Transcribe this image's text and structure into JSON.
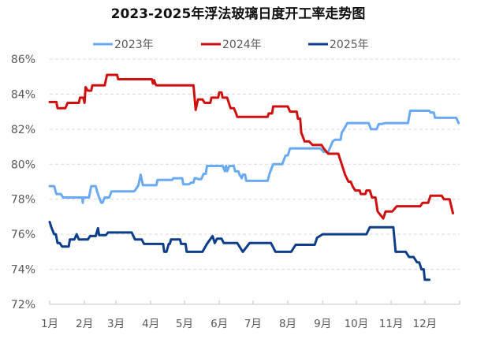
{
  "chart_data": {
    "type": "line",
    "title": "2023-2025年浮法玻璃日度开工率走势图",
    "xlabel": "",
    "ylabel": "",
    "ylim": [
      72,
      86
    ],
    "yticks": [
      "72%",
      "74%",
      "76%",
      "78%",
      "80%",
      "82%",
      "84%",
      "86%"
    ],
    "xticks": [
      "1月",
      "2月",
      "3月",
      "4月",
      "5月",
      "6月",
      "7月",
      "8月",
      "9月",
      "10月",
      "11月",
      "12月"
    ],
    "x_unit": "day_of_year",
    "grid": true,
    "legend_position": "top",
    "series": [
      {
        "name": "2023年",
        "color": "#6aaaf5",
        "points": [
          [
            0,
            78.75
          ],
          [
            4,
            78.75
          ],
          [
            6,
            78.3
          ],
          [
            10,
            78.3
          ],
          [
            12,
            78.1
          ],
          [
            29,
            78.1
          ],
          [
            29.5,
            77.8
          ],
          [
            30,
            78.1
          ],
          [
            35,
            78.1
          ],
          [
            37,
            78.75
          ],
          [
            41,
            78.75
          ],
          [
            42.5,
            78.4
          ],
          [
            44,
            78.1
          ],
          [
            46,
            77.8
          ],
          [
            47,
            77.8
          ],
          [
            49,
            78.1
          ],
          [
            53,
            78.1
          ],
          [
            55,
            78.45
          ],
          [
            75,
            78.45
          ],
          [
            76,
            78.5
          ],
          [
            79,
            78.8
          ],
          [
            81,
            79.4
          ],
          [
            83,
            78.8
          ],
          [
            95,
            78.8
          ],
          [
            96,
            79.1
          ],
          [
            109,
            79.1
          ],
          [
            110,
            79.2
          ],
          [
            118,
            79.2
          ],
          [
            119,
            78.85
          ],
          [
            124,
            78.85
          ],
          [
            126,
            78.95
          ],
          [
            128,
            78.95
          ],
          [
            129,
            79.2
          ],
          [
            131,
            79.2
          ],
          [
            132,
            79.15
          ],
          [
            135,
            79.15
          ],
          [
            137,
            79.45
          ],
          [
            139,
            79.45
          ],
          [
            140,
            79.9
          ],
          [
            154,
            79.9
          ],
          [
            156,
            79.6
          ],
          [
            157,
            79.9
          ],
          [
            158,
            79.6
          ],
          [
            160,
            79.9
          ],
          [
            164,
            79.9
          ],
          [
            165,
            79.6
          ],
          [
            168,
            79.6
          ],
          [
            169,
            79.4
          ],
          [
            171,
            79.2
          ],
          [
            172,
            79.4
          ],
          [
            174,
            79.4
          ],
          [
            175,
            79.05
          ],
          [
            194,
            79.05
          ],
          [
            196,
            79.5
          ],
          [
            199,
            80.0
          ],
          [
            207,
            80.0
          ],
          [
            210,
            80.5
          ],
          [
            212,
            80.5
          ],
          [
            214,
            80.9
          ],
          [
            241,
            80.9
          ],
          [
            244,
            80.7
          ],
          [
            248,
            80.7
          ],
          [
            252,
            81.3
          ],
          [
            254,
            81.4
          ],
          [
            259,
            81.4
          ],
          [
            260,
            81.8
          ],
          [
            262,
            82.0
          ],
          [
            265,
            82.35
          ],
          [
            284,
            82.35
          ],
          [
            286,
            82.0
          ],
          [
            291,
            82.0
          ],
          [
            293,
            82.3
          ],
          [
            296,
            82.3
          ],
          [
            299,
            82.35
          ],
          [
            319,
            82.35
          ],
          [
            321,
            83.05
          ],
          [
            338,
            83.05
          ],
          [
            339,
            82.95
          ],
          [
            342,
            82.95
          ],
          [
            343,
            82.65
          ],
          [
            362,
            82.65
          ],
          [
            364,
            82.35
          ]
        ]
      },
      {
        "name": "2024年",
        "color": "#d00f0f",
        "points": [
          [
            0,
            83.55
          ],
          [
            6,
            83.55
          ],
          [
            7,
            83.2
          ],
          [
            14,
            83.2
          ],
          [
            16,
            83.5
          ],
          [
            26,
            83.5
          ],
          [
            27,
            83.8
          ],
          [
            30,
            83.8
          ],
          [
            31,
            83.5
          ],
          [
            32,
            84.4
          ],
          [
            34,
            84.2
          ],
          [
            37,
            84.2
          ],
          [
            38,
            84.5
          ],
          [
            49,
            84.5
          ],
          [
            51,
            85.1
          ],
          [
            60,
            85.1
          ],
          [
            61,
            84.85
          ],
          [
            91,
            84.85
          ],
          [
            92,
            84.6
          ],
          [
            93,
            84.8
          ],
          [
            94,
            84.6
          ],
          [
            95,
            84.5
          ],
          [
            128,
            84.5
          ],
          [
            130,
            83.1
          ],
          [
            132,
            83.7
          ],
          [
            136,
            83.7
          ],
          [
            138,
            83.5
          ],
          [
            143,
            83.5
          ],
          [
            144,
            83.8
          ],
          [
            150,
            83.8
          ],
          [
            151,
            84.1
          ],
          [
            153,
            84.1
          ],
          [
            154,
            83.8
          ],
          [
            158,
            83.8
          ],
          [
            161,
            83.2
          ],
          [
            164,
            83.2
          ],
          [
            166,
            82.9
          ],
          [
            167,
            82.7
          ],
          [
            194,
            82.7
          ],
          [
            195,
            82.9
          ],
          [
            198,
            82.9
          ],
          [
            199,
            83.3
          ],
          [
            212,
            83.3
          ],
          [
            214,
            83.0
          ],
          [
            220,
            83.0
          ],
          [
            221,
            82.6
          ],
          [
            223,
            82.6
          ],
          [
            224,
            81.8
          ],
          [
            227,
            81.3
          ],
          [
            231,
            81.3
          ],
          [
            234,
            81.1
          ],
          [
            242,
            81.1
          ],
          [
            244,
            80.9
          ],
          [
            248,
            80.6
          ],
          [
            257,
            80.6
          ],
          [
            260,
            80.0
          ],
          [
            263,
            79.4
          ],
          [
            266,
            79.0
          ],
          [
            268,
            79.0
          ],
          [
            270,
            78.7
          ],
          [
            272,
            78.5
          ],
          [
            276,
            78.5
          ],
          [
            277,
            78.3
          ],
          [
            281,
            78.3
          ],
          [
            282,
            78.5
          ],
          [
            285,
            78.5
          ],
          [
            287,
            78.1
          ],
          [
            290,
            78.1
          ],
          [
            292,
            77.3
          ],
          [
            297,
            76.9
          ],
          [
            299,
            77.3
          ],
          [
            305,
            77.3
          ],
          [
            309,
            77.6
          ],
          [
            330,
            77.6
          ],
          [
            332,
            77.8
          ],
          [
            337,
            77.8
          ],
          [
            339,
            78.2
          ],
          [
            349,
            78.2
          ],
          [
            351,
            78.0
          ],
          [
            356,
            78.0
          ],
          [
            359,
            77.2
          ]
        ]
      },
      {
        "name": "2025年",
        "color": "#0d3e8a",
        "points": [
          [
            0,
            76.7
          ],
          [
            1.5,
            76.4
          ],
          [
            4,
            76.0
          ],
          [
            5.5,
            76.0
          ],
          [
            7,
            75.5
          ],
          [
            9,
            75.5
          ],
          [
            11,
            75.3
          ],
          [
            17,
            75.3
          ],
          [
            18,
            75.7
          ],
          [
            22,
            75.7
          ],
          [
            24,
            76.0
          ],
          [
            26,
            75.7
          ],
          [
            34,
            75.7
          ],
          [
            36,
            75.9
          ],
          [
            41,
            75.9
          ],
          [
            43,
            76.35
          ],
          [
            44,
            75.95
          ],
          [
            50,
            75.95
          ],
          [
            52,
            76.1
          ],
          [
            73,
            76.1
          ],
          [
            76,
            75.7
          ],
          [
            82,
            75.7
          ],
          [
            84,
            75.45
          ],
          [
            101,
            75.45
          ],
          [
            102,
            75.0
          ],
          [
            104,
            75.0
          ],
          [
            106,
            75.45
          ],
          [
            107,
            75.45
          ],
          [
            108,
            75.7
          ],
          [
            116,
            75.7
          ],
          [
            117,
            75.45
          ],
          [
            121,
            75.45
          ],
          [
            122,
            75.0
          ],
          [
            136,
            75.0
          ],
          [
            140,
            75.45
          ],
          [
            145,
            75.9
          ],
          [
            147,
            75.5
          ],
          [
            149,
            75.75
          ],
          [
            153,
            75.75
          ],
          [
            155,
            75.5
          ],
          [
            167,
            75.5
          ],
          [
            172,
            75.0
          ],
          [
            178,
            75.5
          ],
          [
            197,
            75.5
          ],
          [
            201,
            75.0
          ],
          [
            215,
            75.0
          ],
          [
            219,
            75.4
          ],
          [
            236,
            75.4
          ],
          [
            238,
            75.8
          ],
          [
            243,
            76.0
          ],
          [
            282,
            76.0
          ],
          [
            285,
            76.4
          ],
          [
            306,
            76.4
          ],
          [
            308,
            75.0
          ],
          [
            317,
            75.0
          ],
          [
            320,
            74.7
          ],
          [
            324,
            74.7
          ],
          [
            327,
            74.4
          ],
          [
            329,
            74.4
          ],
          [
            331,
            74.0
          ],
          [
            333,
            74.0
          ],
          [
            334,
            73.4
          ],
          [
            338,
            73.4
          ]
        ]
      }
    ]
  },
  "chart": {
    "title": "2023-2025年浮法玻璃日度开工率走势图",
    "legend": [
      {
        "label": "2023年",
        "color": "#6aaaf5"
      },
      {
        "label": "2024年",
        "color": "#d00f0f"
      },
      {
        "label": "2025年",
        "color": "#0d3e8a"
      }
    ],
    "y_ticks": [
      "86%",
      "84%",
      "82%",
      "80%",
      "78%",
      "76%",
      "74%",
      "72%"
    ],
    "x_ticks": [
      "1月",
      "2月",
      "3月",
      "4月",
      "5月",
      "6月",
      "7月",
      "8月",
      "9月",
      "10月",
      "11月",
      "12月"
    ]
  }
}
